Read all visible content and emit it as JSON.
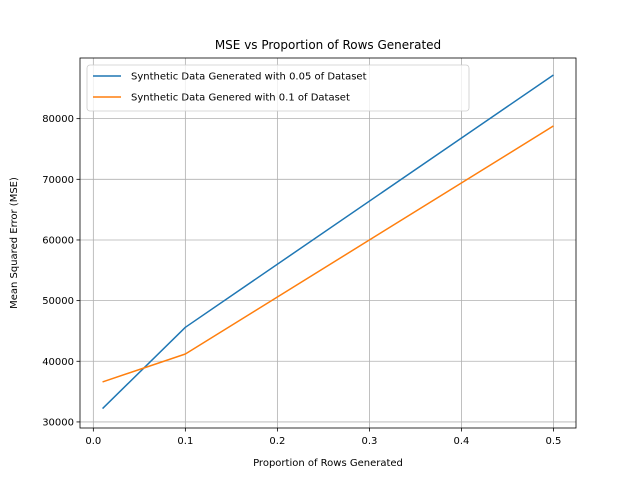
{
  "chart_data": {
    "type": "line",
    "title": "MSE vs Proportion of Rows Generated",
    "xlabel": "Proportion of Rows Generated",
    "ylabel": "Mean Squared Error (MSE)",
    "xlim": [
      -0.0145,
      0.5245
    ],
    "ylim": [
      29000,
      90000
    ],
    "xticks": [
      0.0,
      0.1,
      0.2,
      0.3,
      0.4,
      0.5
    ],
    "xtick_labels": [
      "0.0",
      "0.1",
      "0.2",
      "0.3",
      "0.4",
      "0.5"
    ],
    "yticks": [
      30000,
      40000,
      50000,
      60000,
      70000,
      80000
    ],
    "ytick_labels": [
      "30000",
      "40000",
      "50000",
      "60000",
      "70000",
      "80000"
    ],
    "grid": true,
    "legend_position": "upper-left",
    "series": [
      {
        "name": "Synthetic Data Generated with 0.05 of Dataset",
        "color": "#1f77b4",
        "x": [
          0.01,
          0.1,
          0.5
        ],
        "y": [
          32200,
          45600,
          87200
        ]
      },
      {
        "name": "Synthetic Data Genered with 0.1 of Dataset",
        "color": "#ff7f0e",
        "x": [
          0.01,
          0.1,
          0.5
        ],
        "y": [
          36600,
          41200,
          78800
        ]
      }
    ]
  }
}
